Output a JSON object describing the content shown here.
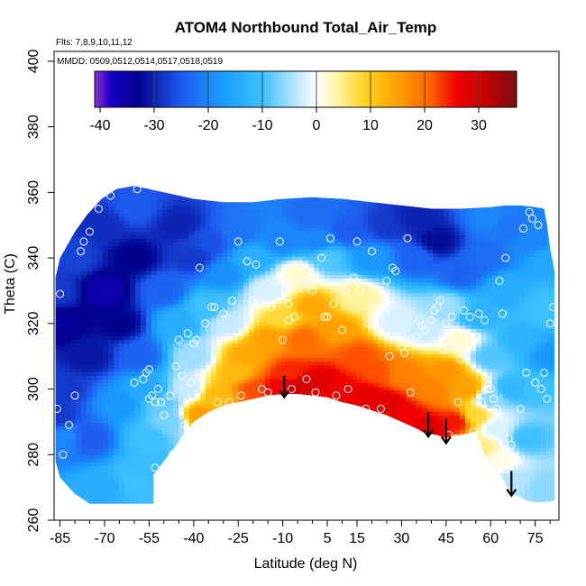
{
  "chart_data": {
    "type": "heatmap",
    "title": "ATOM4 Northbound Total_Air_Temp",
    "annotations": [
      "Flts: 7,8,9,10,11,12",
      "MMDD: 0509,0512,0514,0517,0518,0519"
    ],
    "xlabel": "Latitude (deg N)",
    "ylabel": "Theta (C)",
    "xlim": [
      -87,
      83
    ],
    "ylim": [
      260,
      403
    ],
    "x_ticks": [
      -85,
      -70,
      -55,
      -40,
      -25,
      -10,
      5,
      15,
      30,
      45,
      60,
      75
    ],
    "x_tick_labels": [
      "-85",
      "-70",
      "-55",
      "-40",
      "-25",
      "-10",
      "5",
      "15",
      "30",
      "45",
      "60",
      "75"
    ],
    "y_ticks": [
      260,
      280,
      300,
      320,
      340,
      360,
      380,
      400
    ],
    "y_tick_labels": [
      "260",
      "280",
      "300",
      "320",
      "340",
      "360",
      "380",
      "400"
    ],
    "colorbar": {
      "range": [
        -41,
        37
      ],
      "ticks": [
        -40,
        -30,
        -20,
        -10,
        0,
        10,
        20,
        30
      ],
      "tick_labels": [
        "-40",
        "-30",
        "-20",
        "-10",
        "0",
        "10",
        "20",
        "30"
      ],
      "stops": [
        {
          "v": -41,
          "c": "#8a2be2"
        },
        {
          "v": -38,
          "c": "#1a00c8"
        },
        {
          "v": -33,
          "c": "#00008b"
        },
        {
          "v": -25,
          "c": "#1e5af0"
        },
        {
          "v": -17,
          "c": "#1aa0ff"
        },
        {
          "v": -10,
          "c": "#3cc0ff"
        },
        {
          "v": -4,
          "c": "#b4e4ff"
        },
        {
          "v": 0,
          "c": "#ffffff"
        },
        {
          "v": 4,
          "c": "#fff4a0"
        },
        {
          "v": 9,
          "c": "#ffd21e"
        },
        {
          "v": 15,
          "c": "#ffa000"
        },
        {
          "v": 21,
          "c": "#ff6400"
        },
        {
          "v": 26,
          "c": "#f00000"
        },
        {
          "v": 31,
          "c": "#c80000"
        },
        {
          "v": 37,
          "c": "#781010"
        }
      ]
    },
    "boundary": {
      "top": [
        [
          -86.5,
          334
        ],
        [
          -85,
          340
        ],
        [
          -80,
          348
        ],
        [
          -76,
          353
        ],
        [
          -71,
          358
        ],
        [
          -66,
          361
        ],
        [
          -60,
          362
        ],
        [
          -50,
          360
        ],
        [
          -40,
          358
        ],
        [
          -30,
          357
        ],
        [
          -20,
          357
        ],
        [
          -10,
          358
        ],
        [
          0,
          358.5
        ],
        [
          10,
          358
        ],
        [
          20,
          357
        ],
        [
          30,
          356
        ],
        [
          40,
          355
        ],
        [
          50,
          355
        ],
        [
          60,
          355.5
        ],
        [
          65,
          356
        ],
        [
          70,
          356
        ],
        [
          75,
          355.5
        ],
        [
          78,
          355
        ],
        [
          79,
          350
        ],
        [
          80,
          343
        ],
        [
          81.5,
          336
        ]
      ],
      "bottom": [
        [
          -86.5,
          278
        ],
        [
          -85,
          273
        ],
        [
          -80,
          268
        ],
        [
          -75,
          265
        ],
        [
          -65,
          265
        ],
        [
          -53.5,
          265
        ],
        [
          -53.5,
          274
        ],
        [
          -50,
          278
        ],
        [
          -45,
          284
        ],
        [
          -40,
          290
        ],
        [
          -35,
          293
        ],
        [
          -30,
          295
        ],
        [
          -25,
          296
        ],
        [
          -20,
          297
        ],
        [
          -15,
          298
        ],
        [
          -10,
          298.5
        ],
        [
          -5,
          298.5
        ],
        [
          0,
          298
        ],
        [
          5,
          297.5
        ],
        [
          10,
          296
        ],
        [
          15,
          295
        ],
        [
          20,
          293.5
        ],
        [
          25,
          292
        ],
        [
          30,
          290
        ],
        [
          35,
          288
        ],
        [
          38,
          286.5
        ],
        [
          42,
          286
        ],
        [
          45,
          285
        ],
        [
          48,
          286
        ],
        [
          50,
          286
        ],
        [
          55,
          287
        ],
        [
          58,
          280
        ],
        [
          60,
          277
        ],
        [
          63,
          274
        ],
        [
          65,
          271
        ],
        [
          67,
          268
        ],
        [
          70,
          267
        ],
        [
          72,
          266
        ],
        [
          75,
          265.5
        ],
        [
          78,
          265.5
        ],
        [
          81.5,
          266
        ]
      ]
    },
    "field_points": [
      [
        -84,
        300,
        -28
      ],
      [
        -84,
        320,
        -34
      ],
      [
        -83,
        285,
        -20
      ],
      [
        -80,
        340,
        -27
      ],
      [
        -75,
        310,
        -31
      ],
      [
        -75,
        285,
        -25
      ],
      [
        -70,
        330,
        -36
      ],
      [
        -70,
        350,
        -29
      ],
      [
        -65,
        320,
        -33
      ],
      [
        -65,
        295,
        -18
      ],
      [
        -60,
        355,
        -25
      ],
      [
        -60,
        340,
        -33
      ],
      [
        -58,
        310,
        -24
      ],
      [
        -55,
        300,
        -15
      ],
      [
        -55,
        285,
        -10
      ],
      [
        -53,
        275,
        -11
      ],
      [
        -50,
        330,
        -24
      ],
      [
        -50,
        295,
        -8
      ],
      [
        -48,
        290,
        -7
      ],
      [
        -45,
        350,
        -30
      ],
      [
        -45,
        320,
        -14
      ],
      [
        -42,
        300,
        -3
      ],
      [
        -40,
        340,
        -28
      ],
      [
        -40,
        310,
        -5
      ],
      [
        -38,
        292,
        15
      ],
      [
        -35,
        345,
        -26
      ],
      [
        -35,
        325,
        -10
      ],
      [
        -32,
        298,
        12
      ],
      [
        -30,
        335,
        -19
      ],
      [
        -28,
        320,
        -3
      ],
      [
        -25,
        305,
        12
      ],
      [
        -25,
        348,
        -22
      ],
      [
        -22,
        310,
        14
      ],
      [
        -20,
        340,
        -14
      ],
      [
        -20,
        300,
        22
      ],
      [
        -15,
        330,
        -2
      ],
      [
        -15,
        315,
        15
      ],
      [
        -12,
        300,
        26
      ],
      [
        -10,
        345,
        -20
      ],
      [
        -10,
        322,
        8
      ],
      [
        -8,
        305,
        24
      ],
      [
        -5,
        335,
        2
      ],
      [
        -5,
        300,
        30
      ],
      [
        -3,
        315,
        20
      ],
      [
        0,
        325,
        14
      ],
      [
        2,
        345,
        -20
      ],
      [
        3,
        302,
        28
      ],
      [
        5,
        340,
        -9
      ],
      [
        8,
        318,
        15
      ],
      [
        10,
        300,
        26
      ],
      [
        12,
        348,
        -25
      ],
      [
        15,
        328,
        4
      ],
      [
        15,
        310,
        22
      ],
      [
        18,
        298,
        27
      ],
      [
        20,
        340,
        -18
      ],
      [
        22,
        305,
        22
      ],
      [
        25,
        295,
        28
      ],
      [
        25,
        350,
        -28
      ],
      [
        28,
        320,
        -2
      ],
      [
        30,
        305,
        18
      ],
      [
        32,
        292,
        26
      ],
      [
        35,
        340,
        -24
      ],
      [
        38,
        318,
        -3
      ],
      [
        40,
        300,
        18
      ],
      [
        40,
        288,
        28
      ],
      [
        42,
        345,
        -32
      ],
      [
        45,
        325,
        -5
      ],
      [
        45,
        305,
        16
      ],
      [
        48,
        290,
        25
      ],
      [
        50,
        335,
        -24
      ],
      [
        50,
        315,
        2
      ],
      [
        52,
        300,
        15
      ],
      [
        55,
        322,
        -13
      ],
      [
        55,
        292,
        8
      ],
      [
        57,
        282,
        5
      ],
      [
        58,
        340,
        -23
      ],
      [
        60,
        310,
        -9
      ],
      [
        60,
        297,
        -6
      ],
      [
        62,
        288,
        -2
      ],
      [
        63,
        278,
        1
      ],
      [
        65,
        350,
        -22
      ],
      [
        65,
        330,
        -14
      ],
      [
        67,
        300,
        -12
      ],
      [
        68,
        272,
        -4
      ],
      [
        70,
        315,
        -13
      ],
      [
        72,
        285,
        -10
      ],
      [
        75,
        345,
        -20
      ],
      [
        75,
        300,
        -10
      ],
      [
        78,
        325,
        -10
      ],
      [
        78,
        270,
        -6
      ],
      [
        80,
        310,
        -18
      ],
      [
        80,
        340,
        -15
      ],
      [
        -86,
        330,
        -28
      ],
      [
        -86,
        292,
        -28
      ],
      [
        0,
        353,
        -23
      ],
      [
        35,
        352,
        -30
      ],
      [
        60,
        352,
        -20
      ],
      [
        -60,
        272,
        -10
      ],
      [
        -70,
        270,
        -14
      ]
    ],
    "observations": [
      [
        -86,
        294
      ],
      [
        -85,
        329
      ],
      [
        -84,
        280
      ],
      [
        -82,
        289
      ],
      [
        -80,
        298
      ],
      [
        -78,
        342
      ],
      [
        -77,
        345
      ],
      [
        -75,
        348
      ],
      [
        -72,
        355
      ],
      [
        -70,
        360
      ],
      [
        -68,
        359
      ],
      [
        -60,
        302
      ],
      [
        -59,
        361
      ],
      [
        -57,
        303
      ],
      [
        -56,
        305
      ],
      [
        -55,
        297
      ],
      [
        -55,
        306
      ],
      [
        -54,
        298
      ],
      [
        -53,
        296
      ],
      [
        -53,
        276
      ],
      [
        -52,
        300
      ],
      [
        -51,
        296
      ],
      [
        -50,
        292
      ],
      [
        -48,
        298
      ],
      [
        -47,
        280
      ],
      [
        -46,
        307
      ],
      [
        -45,
        315
      ],
      [
        -44,
        304
      ],
      [
        -43,
        289
      ],
      [
        -42,
        317
      ],
      [
        -41,
        302
      ],
      [
        -40,
        314
      ],
      [
        -39,
        315
      ],
      [
        -38,
        337
      ],
      [
        -36,
        320
      ],
      [
        -34,
        325
      ],
      [
        -33,
        325
      ],
      [
        -32,
        296
      ],
      [
        -30,
        323
      ],
      [
        -28,
        296
      ],
      [
        -27,
        327
      ],
      [
        -25,
        345
      ],
      [
        -24,
        298
      ],
      [
        -22,
        339
      ],
      [
        -20,
        327
      ],
      [
        -19,
        338
      ],
      [
        -18,
        292
      ],
      [
        -17,
        300
      ],
      [
        -15,
        299
      ],
      [
        -14,
        325
      ],
      [
        -12,
        333
      ],
      [
        -11,
        345
      ],
      [
        -10,
        315
      ],
      [
        -9,
        334
      ],
      [
        -8,
        326
      ],
      [
        -8,
        321
      ],
      [
        -7,
        300
      ],
      [
        -6,
        322
      ],
      [
        -4,
        296
      ],
      [
        -2,
        303
      ],
      [
        -1,
        332
      ],
      [
        0,
        330
      ],
      [
        1,
        299
      ],
      [
        3,
        340
      ],
      [
        4,
        322
      ],
      [
        5,
        322
      ],
      [
        6,
        346
      ],
      [
        7,
        326
      ],
      [
        8,
        298
      ],
      [
        10,
        318
      ],
      [
        11,
        330
      ],
      [
        12,
        300
      ],
      [
        14,
        334
      ],
      [
        15,
        345
      ],
      [
        16,
        330
      ],
      [
        18,
        294
      ],
      [
        19,
        320
      ],
      [
        20,
        342
      ],
      [
        21,
        325
      ],
      [
        23,
        294
      ],
      [
        25,
        333
      ],
      [
        26,
        310
      ],
      [
        27,
        337
      ],
      [
        28,
        336
      ],
      [
        30,
        313
      ],
      [
        31,
        311
      ],
      [
        32,
        346
      ],
      [
        33,
        299
      ],
      [
        35,
        316
      ],
      [
        36,
        321
      ],
      [
        37,
        319
      ],
      [
        38,
        318
      ],
      [
        40,
        321
      ],
      [
        41,
        324
      ],
      [
        42,
        325
      ],
      [
        43,
        327
      ],
      [
        44,
        312
      ],
      [
        45,
        315
      ],
      [
        45,
        320
      ],
      [
        46,
        286
      ],
      [
        47,
        322
      ],
      [
        48,
        313
      ],
      [
        49,
        296
      ],
      [
        50,
        309
      ],
      [
        51,
        324
      ],
      [
        52,
        310
      ],
      [
        53,
        322
      ],
      [
        54,
        287
      ],
      [
        55,
        316
      ],
      [
        56,
        323
      ],
      [
        57,
        296
      ],
      [
        58,
        321
      ],
      [
        59,
        300
      ],
      [
        60,
        300
      ],
      [
        61,
        297
      ],
      [
        62,
        294
      ],
      [
        63,
        333
      ],
      [
        64,
        323
      ],
      [
        65,
        340
      ],
      [
        66,
        285
      ],
      [
        67,
        283
      ],
      [
        68,
        279
      ],
      [
        69,
        278
      ],
      [
        70,
        294
      ],
      [
        71,
        349
      ],
      [
        72,
        305
      ],
      [
        73,
        354
      ],
      [
        74,
        352
      ],
      [
        75,
        302
      ],
      [
        76,
        350
      ],
      [
        77,
        300
      ],
      [
        78,
        305
      ],
      [
        79,
        297
      ],
      [
        80,
        320
      ],
      [
        81,
        325
      ]
    ],
    "arrows": [
      [
        -9.5,
        304,
        297.5
      ],
      [
        39,
        293,
        285.5
      ],
      [
        45,
        291,
        283.5
      ],
      [
        67,
        275,
        267.5
      ]
    ]
  }
}
